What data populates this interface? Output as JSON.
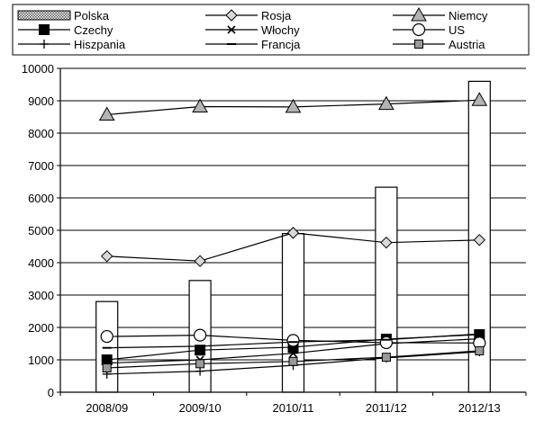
{
  "chart_data": {
    "type": "bar",
    "title": "",
    "xlabel": "",
    "ylabel": "",
    "categories": [
      "2008/09",
      "2009/10",
      "2010/11",
      "2011/12",
      "2012/13"
    ],
    "ylim": [
      0,
      10000
    ],
    "yticks": [
      0,
      1000,
      2000,
      3000,
      4000,
      5000,
      6000,
      7000,
      8000,
      9000,
      10000
    ],
    "grid": true,
    "legend_position": "top",
    "bar_series": {
      "name": "Polska",
      "values": [
        2800,
        3450,
        4900,
        6330,
        9600
      ]
    },
    "line_series": [
      {
        "name": "Rosja",
        "marker": "diamond",
        "values": [
          4200,
          4050,
          4920,
          4620,
          4700
        ]
      },
      {
        "name": "Niemcy",
        "marker": "triangle",
        "values": [
          8570,
          8820,
          8810,
          8900,
          9020
        ]
      },
      {
        "name": "Czechy",
        "marker": "square-filled",
        "values": [
          1000,
          1300,
          1390,
          1640,
          1780
        ]
      },
      {
        "name": "Włochy",
        "marker": "star",
        "values": [
          900,
          1000,
          1200,
          1500,
          1650
        ]
      },
      {
        "name": "US",
        "marker": "circle-open",
        "values": [
          1720,
          1760,
          1600,
          1530,
          1520
        ]
      },
      {
        "name": "Hiszpania",
        "marker": "plus",
        "values": [
          560,
          650,
          830,
          1060,
          1250
        ]
      },
      {
        "name": "Francja",
        "marker": "dash",
        "values": [
          1370,
          1420,
          1550,
          1620,
          1800
        ]
      },
      {
        "name": "Austria",
        "marker": "square-gray",
        "values": [
          750,
          880,
          950,
          1080,
          1280
        ]
      }
    ]
  },
  "legend": {
    "rows": [
      [
        "Polska",
        "Rosja",
        "Niemcy"
      ],
      [
        "Czechy",
        "Włochy",
        "US"
      ],
      [
        "Hiszpania",
        "Francja",
        "Austria"
      ]
    ]
  }
}
